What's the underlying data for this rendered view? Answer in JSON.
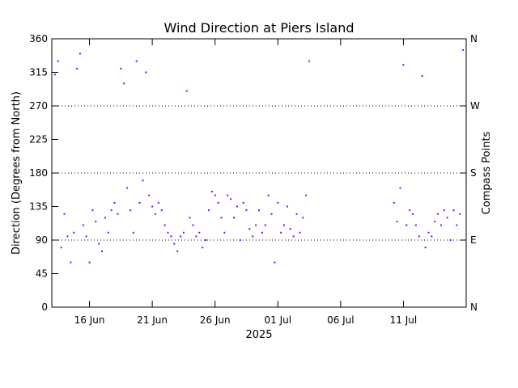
{
  "chart_data": {
    "type": "scatter",
    "title": "Wind Direction at Piers Island",
    "xlabel": "2025",
    "ylabel": "Direction (Degrees from North)",
    "y2label": "Compass Points",
    "xlim": [
      "2025-06-13",
      "2025-07-16"
    ],
    "ylim": [
      0,
      360
    ],
    "y_ticks": [
      "0",
      "45",
      "90",
      "135",
      "180",
      "225",
      "270",
      "315",
      "360"
    ],
    "y2_ticks": [
      {
        "label": "N",
        "value": 0
      },
      {
        "label": "E",
        "value": 90
      },
      {
        "label": "S",
        "value": 180
      },
      {
        "label": "W",
        "value": 270
      },
      {
        "label": "N",
        "value": 360
      }
    ],
    "x_ticks": [
      {
        "label": "16 Jun",
        "date": "2025-06-16"
      },
      {
        "label": "21 Jun",
        "date": "2025-06-21"
      },
      {
        "label": "26 Jun",
        "date": "2025-06-26"
      },
      {
        "label": "01 Jul",
        "date": "2025-07-01"
      },
      {
        "label": "06 Jul",
        "date": "2025-07-06"
      },
      {
        "label": "11 Jul",
        "date": "2025-07-11"
      }
    ],
    "reference_lines": [
      {
        "value": 90,
        "style": "dotted"
      },
      {
        "value": 180,
        "style": "dotted"
      },
      {
        "value": 270,
        "style": "dotted"
      }
    ],
    "grid": false,
    "marker_color": "#8000ff",
    "series": [
      {
        "points": [
          [
            "2025-06-13 06:00",
            312
          ],
          [
            "2025-06-13 12:00",
            330
          ],
          [
            "2025-06-13 18:00",
            80
          ],
          [
            "2025-06-14 00:00",
            125
          ],
          [
            "2025-06-14 06:00",
            95
          ],
          [
            "2025-06-14 12:00",
            60
          ],
          [
            "2025-06-14 18:00",
            100
          ],
          [
            "2025-06-15 00:00",
            320
          ],
          [
            "2025-06-15 06:00",
            340
          ],
          [
            "2025-06-15 12:00",
            110
          ],
          [
            "2025-06-15 18:00",
            95
          ],
          [
            "2025-06-16 00:00",
            60
          ],
          [
            "2025-06-16 06:00",
            130
          ],
          [
            "2025-06-16 12:00",
            115
          ],
          [
            "2025-06-16 18:00",
            85
          ],
          [
            "2025-06-17 00:00",
            75
          ],
          [
            "2025-06-17 06:00",
            120
          ],
          [
            "2025-06-17 12:00",
            100
          ],
          [
            "2025-06-17 18:00",
            130
          ],
          [
            "2025-06-18 00:00",
            140
          ],
          [
            "2025-06-18 06:00",
            125
          ],
          [
            "2025-06-18 12:00",
            320
          ],
          [
            "2025-06-18 18:00",
            300
          ],
          [
            "2025-06-19 00:00",
            160
          ],
          [
            "2025-06-19 06:00",
            130
          ],
          [
            "2025-06-19 12:00",
            100
          ],
          [
            "2025-06-19 18:00",
            330
          ],
          [
            "2025-06-20 00:00",
            140
          ],
          [
            "2025-06-20 06:00",
            170
          ],
          [
            "2025-06-20 12:00",
            315
          ],
          [
            "2025-06-20 18:00",
            150
          ],
          [
            "2025-06-21 00:00",
            135
          ],
          [
            "2025-06-21 06:00",
            125
          ],
          [
            "2025-06-21 12:00",
            140
          ],
          [
            "2025-06-21 18:00",
            130
          ],
          [
            "2025-06-22 00:00",
            110
          ],
          [
            "2025-06-22 06:00",
            100
          ],
          [
            "2025-06-22 12:00",
            95
          ],
          [
            "2025-06-22 18:00",
            85
          ],
          [
            "2025-06-23 00:00",
            75
          ],
          [
            "2025-06-23 06:00",
            95
          ],
          [
            "2025-06-23 12:00",
            100
          ],
          [
            "2025-06-23 18:00",
            290
          ],
          [
            "2025-06-24 00:00",
            120
          ],
          [
            "2025-06-24 06:00",
            110
          ],
          [
            "2025-06-24 12:00",
            95
          ],
          [
            "2025-06-24 18:00",
            100
          ],
          [
            "2025-06-25 00:00",
            80
          ],
          [
            "2025-06-25 06:00",
            90
          ],
          [
            "2025-06-25 12:00",
            130
          ],
          [
            "2025-06-25 18:00",
            155
          ],
          [
            "2025-06-26 00:00",
            150
          ],
          [
            "2025-06-26 06:00",
            140
          ],
          [
            "2025-06-26 12:00",
            120
          ],
          [
            "2025-06-26 18:00",
            100
          ],
          [
            "2025-06-27 00:00",
            150
          ],
          [
            "2025-06-27 06:00",
            145
          ],
          [
            "2025-06-27 12:00",
            120
          ],
          [
            "2025-06-27 18:00",
            135
          ],
          [
            "2025-06-28 00:00",
            90
          ],
          [
            "2025-06-28 06:00",
            140
          ],
          [
            "2025-06-28 12:00",
            130
          ],
          [
            "2025-06-28 18:00",
            105
          ],
          [
            "2025-06-29 00:00",
            95
          ],
          [
            "2025-06-29 06:00",
            110
          ],
          [
            "2025-06-29 12:00",
            130
          ],
          [
            "2025-06-29 18:00",
            100
          ],
          [
            "2025-06-30 00:00",
            110
          ],
          [
            "2025-06-30 06:00",
            150
          ],
          [
            "2025-06-30 12:00",
            125
          ],
          [
            "2025-06-30 18:00",
            60
          ],
          [
            "2025-07-01 00:00",
            140
          ],
          [
            "2025-07-01 06:00",
            100
          ],
          [
            "2025-07-01 12:00",
            110
          ],
          [
            "2025-07-01 18:00",
            135
          ],
          [
            "2025-07-02 00:00",
            105
          ],
          [
            "2025-07-02 06:00",
            95
          ],
          [
            "2025-07-02 12:00",
            125
          ],
          [
            "2025-07-02 18:00",
            100
          ],
          [
            "2025-07-03 00:00",
            120
          ],
          [
            "2025-07-03 06:00",
            150
          ],
          [
            "2025-07-03 12:00",
            330
          ],
          [
            "2025-07-10 06:00",
            140
          ],
          [
            "2025-07-10 12:00",
            115
          ],
          [
            "2025-07-10 18:00",
            160
          ],
          [
            "2025-07-11 00:00",
            325
          ],
          [
            "2025-07-11 06:00",
            110
          ],
          [
            "2025-07-11 12:00",
            130
          ],
          [
            "2025-07-11 18:00",
            125
          ],
          [
            "2025-07-12 00:00",
            110
          ],
          [
            "2025-07-12 06:00",
            95
          ],
          [
            "2025-07-12 12:00",
            310
          ],
          [
            "2025-07-12 18:00",
            80
          ],
          [
            "2025-07-13 00:00",
            100
          ],
          [
            "2025-07-13 06:00",
            95
          ],
          [
            "2025-07-13 12:00",
            115
          ],
          [
            "2025-07-13 18:00",
            125
          ],
          [
            "2025-07-14 00:00",
            110
          ],
          [
            "2025-07-14 06:00",
            130
          ],
          [
            "2025-07-14 12:00",
            120
          ],
          [
            "2025-07-14 18:00",
            90
          ],
          [
            "2025-07-15 00:00",
            130
          ],
          [
            "2025-07-15 06:00",
            110
          ],
          [
            "2025-07-15 12:00",
            125
          ],
          [
            "2025-07-15 18:00",
            345
          ]
        ]
      }
    ]
  }
}
